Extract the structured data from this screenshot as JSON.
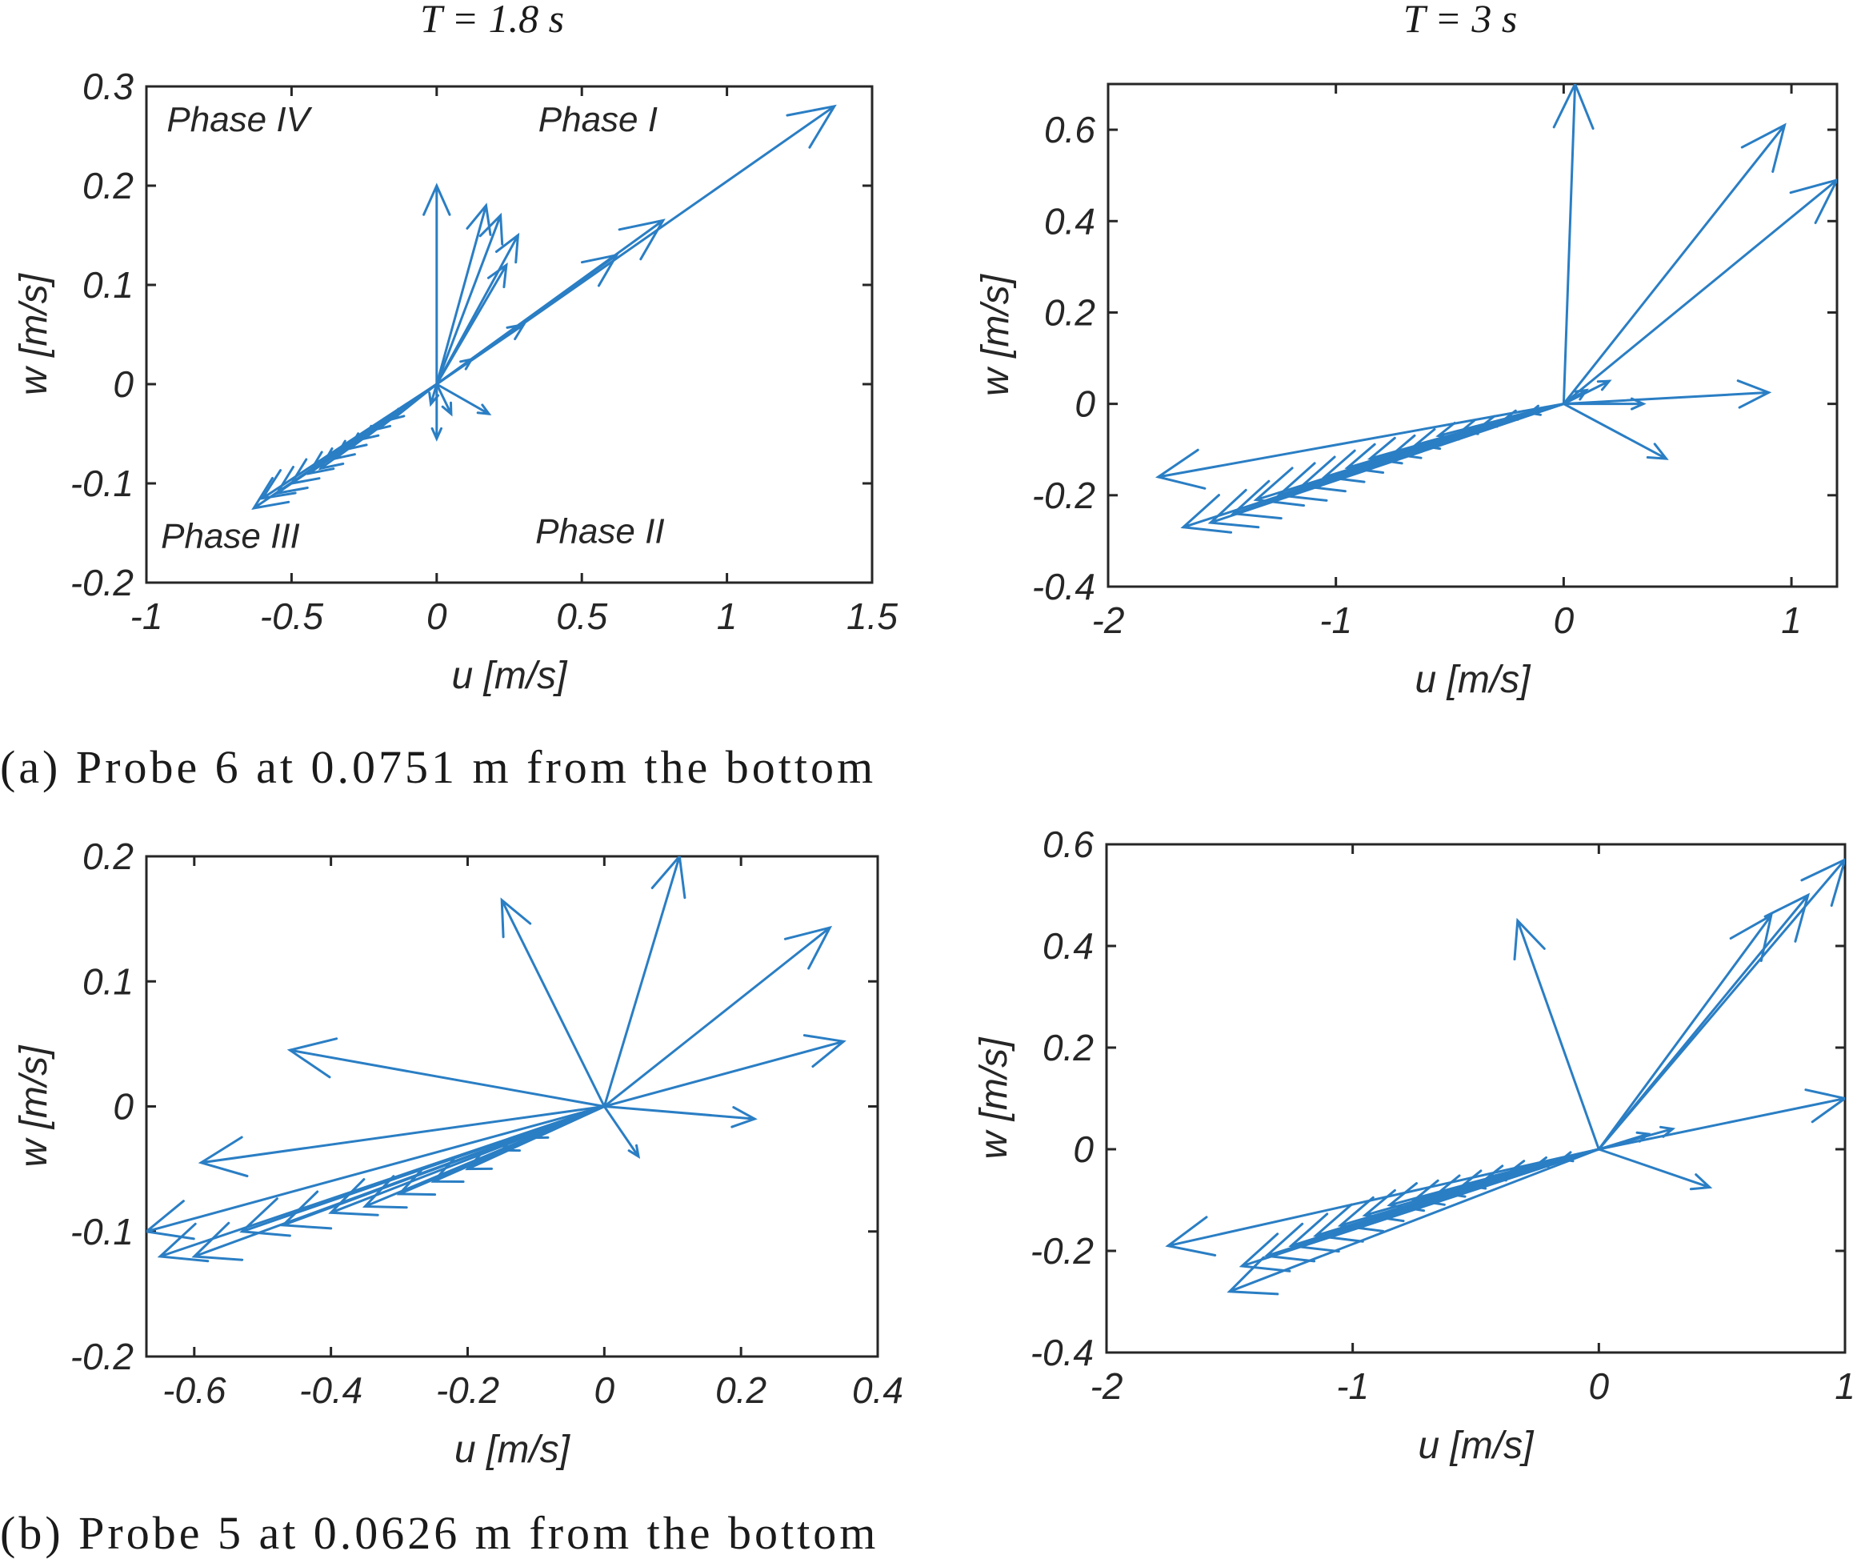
{
  "column_titles": [
    "T = 1.8 s",
    "T = 3 s"
  ],
  "captions": [
    "(a) Probe 6 at 0.0751 m  from the bottom",
    "(b) Probe 5 at 0.0626 m  from the bottom"
  ],
  "colors": {
    "vector": "#2a7ec4",
    "axes": "#262626"
  },
  "chart_data": [
    {
      "type": "scatter",
      "subtype": "velocity-vectors",
      "title": "T = 1.8 s",
      "xlabel": "u [m/s]",
      "ylabel": "w [m/s]",
      "xlim": [
        -1,
        1.5
      ],
      "ylim": [
        -0.2,
        0.3
      ],
      "xticks": [
        -1,
        -0.5,
        0,
        0.5,
        1,
        1.5
      ],
      "xtick_labels": [
        "-1",
        "-0.5",
        "0",
        "0.5",
        "1",
        "1.5"
      ],
      "yticks": [
        -0.2,
        -0.1,
        0,
        0.1,
        0.2,
        0.3
      ],
      "ytick_labels": [
        "-0.2",
        "-0.1",
        "0",
        "0.1",
        "0.2",
        "0.3"
      ],
      "annotations": [
        {
          "text": "Phase IV",
          "x": -0.93,
          "y": 0.255
        },
        {
          "text": "Phase I",
          "x": 0.35,
          "y": 0.255
        },
        {
          "text": "Phase III",
          "x": -0.95,
          "y": -0.165
        },
        {
          "text": "Phase II",
          "x": 0.34,
          "y": -0.16
        }
      ],
      "vectors": [
        [
          1.37,
          0.28
        ],
        [
          0.78,
          0.165
        ],
        [
          0.62,
          0.13
        ],
        [
          0.3,
          0.06
        ],
        [
          0.12,
          0.025
        ],
        [
          0.0,
          0.2
        ],
        [
          0.17,
          0.18
        ],
        [
          0.22,
          0.17
        ],
        [
          0.28,
          0.15
        ],
        [
          0.24,
          0.12
        ],
        [
          0.18,
          -0.03
        ],
        [
          0.05,
          -0.03
        ],
        [
          0.0,
          -0.055
        ],
        [
          -0.02,
          -0.02
        ],
        [
          -0.63,
          -0.125
        ],
        [
          -0.6,
          -0.115
        ],
        [
          -0.55,
          -0.11
        ],
        [
          -0.5,
          -0.1
        ],
        [
          -0.44,
          -0.09
        ],
        [
          -0.4,
          -0.085
        ],
        [
          -0.35,
          -0.075
        ],
        [
          -0.3,
          -0.065
        ],
        [
          -0.25,
          -0.055
        ],
        [
          -0.2,
          -0.045
        ],
        [
          -0.15,
          -0.035
        ]
      ]
    },
    {
      "type": "scatter",
      "subtype": "velocity-vectors",
      "title": "T = 3 s",
      "xlabel": "u [m/s]",
      "ylabel": "w [m/s]",
      "xlim": [
        -2,
        1.2
      ],
      "ylim": [
        -0.4,
        0.7
      ],
      "xticks": [
        -2,
        -1,
        0,
        1
      ],
      "xtick_labels": [
        "-2",
        "-1",
        "0",
        "1"
      ],
      "yticks": [
        -0.4,
        -0.2,
        0,
        0.2,
        0.4,
        0.6
      ],
      "ytick_labels": [
        "-0.4",
        "-0.2",
        "0",
        "0.2",
        "0.4",
        "0.6"
      ],
      "vectors": [
        [
          0.05,
          0.7
        ],
        [
          0.97,
          0.61
        ],
        [
          1.2,
          0.49
        ],
        [
          0.9,
          0.025
        ],
        [
          0.35,
          0.0
        ],
        [
          0.45,
          -0.12
        ],
        [
          0.2,
          0.05
        ],
        [
          0.1,
          0.03
        ],
        [
          -1.78,
          -0.16
        ],
        [
          -1.67,
          -0.27
        ],
        [
          -1.55,
          -0.26
        ],
        [
          -1.45,
          -0.24
        ],
        [
          -1.35,
          -0.21
        ],
        [
          -1.25,
          -0.2
        ],
        [
          -1.15,
          -0.18
        ],
        [
          -1.05,
          -0.16
        ],
        [
          -0.95,
          -0.14
        ],
        [
          -0.85,
          -0.12
        ],
        [
          -0.75,
          -0.11
        ],
        [
          -0.65,
          -0.09
        ],
        [
          -0.55,
          -0.07
        ],
        [
          -0.45,
          -0.06
        ],
        [
          -0.35,
          -0.045
        ],
        [
          -0.25,
          -0.03
        ],
        [
          -0.15,
          -0.02
        ]
      ]
    },
    {
      "type": "scatter",
      "subtype": "velocity-vectors",
      "title": "",
      "xlabel": "u [m/s]",
      "ylabel": "w [m/s]",
      "xlim": [
        -0.67,
        0.4
      ],
      "ylim": [
        -0.2,
        0.2
      ],
      "xticks": [
        -0.6,
        -0.4,
        -0.2,
        0,
        0.2,
        0.4
      ],
      "xtick_labels": [
        "-0.6",
        "-0.4",
        "-0.2",
        "0",
        "0.2",
        "0.4"
      ],
      "yticks": [
        -0.2,
        -0.1,
        0,
        0.1,
        0.2
      ],
      "ytick_labels": [
        "-0.2",
        "-0.1",
        "0",
        "0.1",
        "0.2"
      ],
      "vectors": [
        [
          0.11,
          0.2
        ],
        [
          -0.15,
          0.165
        ],
        [
          0.33,
          0.143
        ],
        [
          0.35,
          0.052
        ],
        [
          0.22,
          -0.01
        ],
        [
          0.05,
          -0.04
        ],
        [
          -0.46,
          0.045
        ],
        [
          -0.59,
          -0.045
        ],
        [
          -0.67,
          -0.1
        ],
        [
          -0.65,
          -0.12
        ],
        [
          -0.6,
          -0.12
        ],
        [
          -0.53,
          -0.1
        ],
        [
          -0.47,
          -0.095
        ],
        [
          -0.4,
          -0.085
        ],
        [
          -0.35,
          -0.08
        ],
        [
          -0.3,
          -0.07
        ],
        [
          -0.25,
          -0.06
        ],
        [
          -0.2,
          -0.05
        ],
        [
          -0.15,
          -0.035
        ],
        [
          -0.1,
          -0.025
        ]
      ]
    },
    {
      "type": "scatter",
      "subtype": "velocity-vectors",
      "title": "",
      "xlabel": "u [m/s]",
      "ylabel": "w [m/s]",
      "xlim": [
        -2,
        1
      ],
      "ylim": [
        -0.4,
        0.6
      ],
      "xticks": [
        -2,
        -1,
        0,
        1
      ],
      "xtick_labels": [
        "-2",
        "-1",
        "0",
        "1"
      ],
      "yticks": [
        -0.4,
        -0.2,
        0,
        0.2,
        0.4,
        0.6
      ],
      "ytick_labels": [
        "-0.4",
        "-0.2",
        "0",
        "0.2",
        "0.4",
        "0.6"
      ],
      "vectors": [
        [
          -0.33,
          0.45
        ],
        [
          1.0,
          0.57
        ],
        [
          0.85,
          0.5
        ],
        [
          0.7,
          0.46
        ],
        [
          1.0,
          0.1
        ],
        [
          0.45,
          -0.075
        ],
        [
          0.3,
          0.04
        ],
        [
          0.2,
          0.03
        ],
        [
          -1.75,
          -0.19
        ],
        [
          -1.5,
          -0.28
        ],
        [
          -1.45,
          -0.23
        ],
        [
          -1.35,
          -0.21
        ],
        [
          -1.25,
          -0.19
        ],
        [
          -1.15,
          -0.17
        ],
        [
          -1.05,
          -0.15
        ],
        [
          -0.95,
          -0.13
        ],
        [
          -0.85,
          -0.11
        ],
        [
          -0.75,
          -0.1
        ],
        [
          -0.65,
          -0.085
        ],
        [
          -0.55,
          -0.07
        ],
        [
          -0.45,
          -0.055
        ],
        [
          -0.35,
          -0.04
        ],
        [
          -0.25,
          -0.03
        ],
        [
          -0.15,
          -0.02
        ]
      ]
    }
  ]
}
